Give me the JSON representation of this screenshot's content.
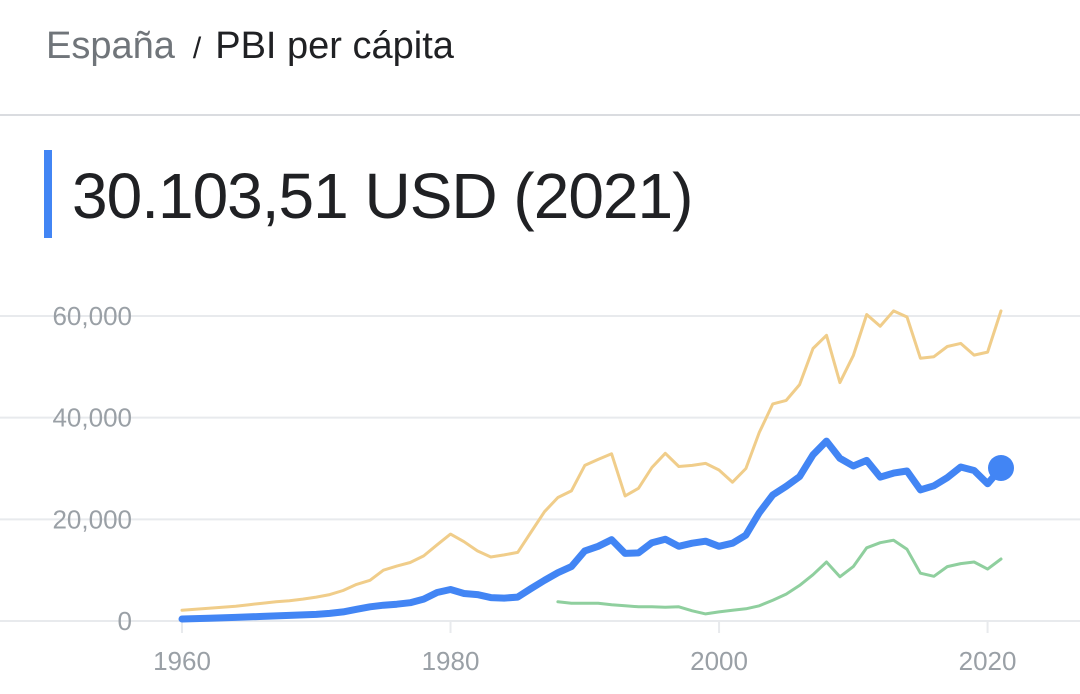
{
  "breadcrumb": {
    "root": "España",
    "separator": "/",
    "current": "PBI per cápita"
  },
  "headline": {
    "value": "30.103,51 USD (2021)"
  },
  "colors": {
    "accent": "#4285f4",
    "series_main": "#4285f4",
    "series_upper": "#f0cd8a",
    "series_lower": "#8fcf9e",
    "grid": "#e8eaed",
    "tick_text": "#9aa0a6"
  },
  "chart_data": {
    "type": "line",
    "title": "",
    "xlabel": "",
    "ylabel": "",
    "xlim": [
      1960,
      2021
    ],
    "ylim": [
      0,
      60000
    ],
    "y_ticks": [
      0,
      20000,
      40000,
      60000
    ],
    "y_tick_labels": [
      "0",
      "20,000",
      "40,000",
      "60,000"
    ],
    "x_ticks": [
      1960,
      1980,
      2000,
      2020
    ],
    "x_tick_labels": [
      "1960",
      "1980",
      "2000",
      "2020"
    ],
    "grid": true,
    "legend": "none",
    "highlight_point": {
      "x": 2021,
      "y": 30103.51
    },
    "series": [
      {
        "color": "#f0cd8a",
        "width": 3,
        "points": [
          [
            1960,
            2100
          ],
          [
            1961,
            2300
          ],
          [
            1962,
            2500
          ],
          [
            1963,
            2700
          ],
          [
            1964,
            2900
          ],
          [
            1965,
            3200
          ],
          [
            1966,
            3500
          ],
          [
            1967,
            3800
          ],
          [
            1968,
            4000
          ],
          [
            1969,
            4300
          ],
          [
            1970,
            4700
          ],
          [
            1971,
            5200
          ],
          [
            1972,
            6000
          ],
          [
            1973,
            7200
          ],
          [
            1974,
            8000
          ],
          [
            1975,
            10000
          ],
          [
            1976,
            10800
          ],
          [
            1977,
            11500
          ],
          [
            1978,
            12800
          ],
          [
            1979,
            15000
          ],
          [
            1980,
            17100
          ],
          [
            1981,
            15600
          ],
          [
            1982,
            13800
          ],
          [
            1983,
            12600
          ],
          [
            1984,
            13000
          ],
          [
            1985,
            13500
          ],
          [
            1986,
            17500
          ],
          [
            1987,
            21500
          ],
          [
            1988,
            24300
          ],
          [
            1989,
            25600
          ],
          [
            1990,
            30600
          ],
          [
            1991,
            31800
          ],
          [
            1992,
            32900
          ],
          [
            1993,
            24600
          ],
          [
            1994,
            26100
          ],
          [
            1995,
            30200
          ],
          [
            1996,
            33000
          ],
          [
            1997,
            30400
          ],
          [
            1998,
            30600
          ],
          [
            1999,
            31000
          ],
          [
            2000,
            29700
          ],
          [
            2001,
            27300
          ],
          [
            2002,
            30000
          ],
          [
            2003,
            37100
          ],
          [
            2004,
            42700
          ],
          [
            2005,
            43400
          ],
          [
            2006,
            46500
          ],
          [
            2007,
            53600
          ],
          [
            2008,
            56200
          ],
          [
            2009,
            46900
          ],
          [
            2010,
            52200
          ],
          [
            2011,
            60300
          ],
          [
            2012,
            58000
          ],
          [
            2013,
            61000
          ],
          [
            2014,
            59800
          ],
          [
            2015,
            51700
          ],
          [
            2016,
            52000
          ],
          [
            2017,
            54000
          ],
          [
            2018,
            54600
          ],
          [
            2019,
            52300
          ],
          [
            2020,
            52900
          ],
          [
            2021,
            61000
          ]
        ]
      },
      {
        "color": "#4285f4",
        "width": 7,
        "points": [
          [
            1960,
            400
          ],
          [
            1962,
            550
          ],
          [
            1964,
            700
          ],
          [
            1966,
            900
          ],
          [
            1968,
            1100
          ],
          [
            1970,
            1300
          ],
          [
            1971,
            1500
          ],
          [
            1972,
            1800
          ],
          [
            1973,
            2300
          ],
          [
            1974,
            2800
          ],
          [
            1975,
            3100
          ],
          [
            1976,
            3300
          ],
          [
            1977,
            3600
          ],
          [
            1978,
            4300
          ],
          [
            1979,
            5600
          ],
          [
            1980,
            6200
          ],
          [
            1981,
            5400
          ],
          [
            1982,
            5200
          ],
          [
            1983,
            4600
          ],
          [
            1984,
            4500
          ],
          [
            1985,
            4700
          ],
          [
            1986,
            6400
          ],
          [
            1987,
            8000
          ],
          [
            1988,
            9500
          ],
          [
            1989,
            10700
          ],
          [
            1990,
            13800
          ],
          [
            1991,
            14700
          ],
          [
            1992,
            16000
          ],
          [
            1993,
            13300
          ],
          [
            1994,
            13400
          ],
          [
            1995,
            15400
          ],
          [
            1996,
            16100
          ],
          [
            1997,
            14700
          ],
          [
            1998,
            15300
          ],
          [
            1999,
            15700
          ],
          [
            2000,
            14700
          ],
          [
            2001,
            15300
          ],
          [
            2002,
            16900
          ],
          [
            2003,
            21300
          ],
          [
            2004,
            24800
          ],
          [
            2005,
            26500
          ],
          [
            2006,
            28400
          ],
          [
            2007,
            32700
          ],
          [
            2008,
            35400
          ],
          [
            2009,
            32000
          ],
          [
            2010,
            30500
          ],
          [
            2011,
            31600
          ],
          [
            2012,
            28300
          ],
          [
            2013,
            29100
          ],
          [
            2014,
            29500
          ],
          [
            2015,
            25800
          ],
          [
            2016,
            26600
          ],
          [
            2017,
            28200
          ],
          [
            2018,
            30300
          ],
          [
            2019,
            29600
          ],
          [
            2020,
            27000
          ],
          [
            2021,
            30103.51
          ]
        ]
      },
      {
        "color": "#8fcf9e",
        "width": 3,
        "points": [
          [
            1988,
            3800
          ],
          [
            1989,
            3500
          ],
          [
            1990,
            3500
          ],
          [
            1991,
            3500
          ],
          [
            1992,
            3200
          ],
          [
            1993,
            3000
          ],
          [
            1994,
            2800
          ],
          [
            1995,
            2800
          ],
          [
            1996,
            2700
          ],
          [
            1997,
            2800
          ],
          [
            1998,
            2000
          ],
          [
            1999,
            1400
          ],
          [
            2000,
            1800
          ],
          [
            2001,
            2100
          ],
          [
            2002,
            2400
          ],
          [
            2003,
            3000
          ],
          [
            2004,
            4100
          ],
          [
            2005,
            5300
          ],
          [
            2006,
            7000
          ],
          [
            2007,
            9100
          ],
          [
            2008,
            11600
          ],
          [
            2009,
            8700
          ],
          [
            2010,
            10700
          ],
          [
            2011,
            14400
          ],
          [
            2012,
            15400
          ],
          [
            2013,
            15900
          ],
          [
            2014,
            14100
          ],
          [
            2015,
            9400
          ],
          [
            2016,
            8800
          ],
          [
            2017,
            10700
          ],
          [
            2018,
            11300
          ],
          [
            2019,
            11600
          ],
          [
            2020,
            10200
          ],
          [
            2021,
            12200
          ]
        ]
      }
    ]
  }
}
